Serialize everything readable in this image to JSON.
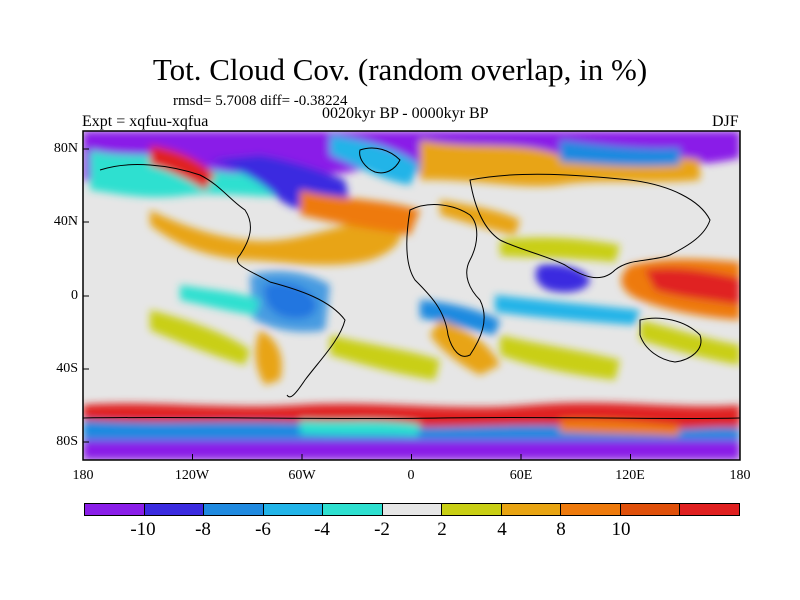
{
  "title": "Tot. Cloud Cov. (random overlap, in %)",
  "stats": "rmsd= 5.7008 diff= -0.38224",
  "experiment": "Expt = xqfuu-xqfua",
  "period": "0020kyr BP - 0000kyr BP",
  "season": "DJF",
  "lon_labels": [
    "180",
    "120W",
    "60W",
    "0",
    "60E",
    "120E",
    "180"
  ],
  "lat_labels": [
    "80N",
    "40N",
    "0",
    "40S",
    "80S"
  ],
  "colorbar": {
    "colors": [
      "#8a1ee8",
      "#3b2be0",
      "#1f8ae0",
      "#22b4e8",
      "#2ee0d0",
      "#e6e6e6",
      "#c9cf14",
      "#e8a412",
      "#ee7a0c",
      "#e0500a",
      "#e02020"
    ],
    "labels": [
      "-10",
      "-8",
      "-6",
      "-4",
      "-2",
      "2",
      "4",
      "8",
      "10"
    ]
  },
  "map_colors": {
    "ocean_neutral": "#e6e6e6",
    "coast": "#000000"
  }
}
